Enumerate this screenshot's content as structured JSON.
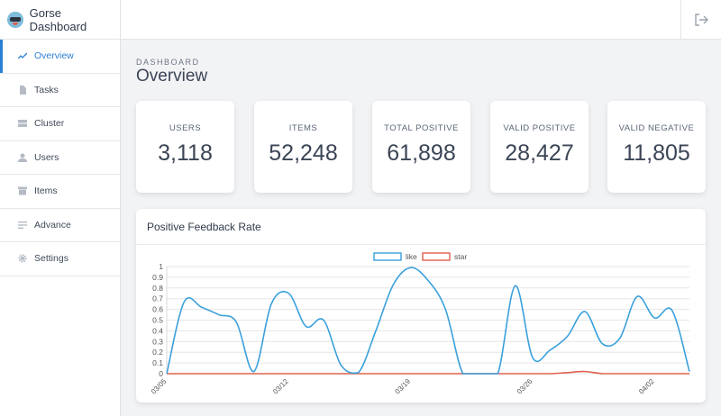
{
  "app": {
    "name": "Gorse Dashboard"
  },
  "sidebar": {
    "items": [
      {
        "label": "Overview",
        "icon": "trend-line-icon",
        "active": true
      },
      {
        "label": "Tasks",
        "icon": "file-icon",
        "active": false
      },
      {
        "label": "Cluster",
        "icon": "server-icon",
        "active": false
      },
      {
        "label": "Users",
        "icon": "user-icon",
        "active": false
      },
      {
        "label": "Items",
        "icon": "archive-icon",
        "active": false
      },
      {
        "label": "Advance",
        "icon": "list-icon",
        "active": false
      },
      {
        "label": "Settings",
        "icon": "gear-icon",
        "active": false
      }
    ]
  },
  "topbar": {
    "logout_icon": "logout-icon"
  },
  "header": {
    "eyebrow": "DASHBOARD",
    "title": "Overview"
  },
  "stats": [
    {
      "label": "USERS",
      "value": "3,118"
    },
    {
      "label": "ITEMS",
      "value": "52,248"
    },
    {
      "label": "TOTAL POSITIVE",
      "value": "61,898"
    },
    {
      "label": "VALID POSITIVE",
      "value": "28,427"
    },
    {
      "label": "VALID NEGATIVE",
      "value": "11,805"
    }
  ],
  "chart_panel": {
    "title": "Positive Feedback Rate"
  },
  "colors": {
    "accent": "#2a7fd4",
    "like": "#3aa0dc",
    "star": "#e0604f"
  },
  "chart_data": {
    "type": "line",
    "title": "",
    "ylim": [
      0,
      1
    ],
    "yticks": [
      "0",
      "0.1",
      "0.2",
      "0.3",
      "0.4",
      "0.5",
      "0.6",
      "0.7",
      "0.8",
      "0.9",
      "1"
    ],
    "xtick_labels": [
      "03/05",
      "03/12",
      "03/19",
      "03/26",
      "04/02"
    ],
    "legend": "top-center",
    "grid": true,
    "series": [
      {
        "name": "like",
        "values": [
          0,
          0.67,
          0.62,
          0.55,
          0.48,
          0.02,
          0.65,
          0.75,
          0.44,
          0.5,
          0.08,
          0.01,
          0.4,
          0.83,
          0.99,
          0.87,
          0.6,
          0.0,
          0.0,
          0.0,
          0.82,
          0.15,
          0.22,
          0.35,
          0.58,
          0.28,
          0.33,
          0.72,
          0.52,
          0.59,
          0.02
        ]
      },
      {
        "name": "star",
        "values": [
          0,
          0,
          0,
          0,
          0,
          0,
          0,
          0,
          0,
          0,
          0,
          0,
          0,
          0,
          0,
          0,
          0,
          0,
          0,
          0,
          0,
          0,
          0,
          0.01,
          0.02,
          0,
          0,
          0,
          0,
          0,
          0
        ]
      }
    ]
  }
}
